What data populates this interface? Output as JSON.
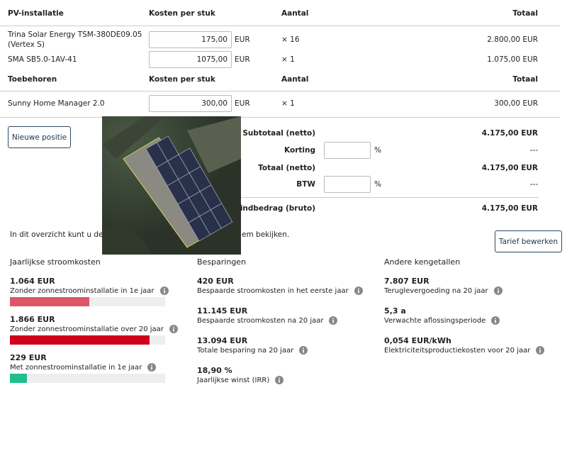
{
  "pv_table": {
    "headers": [
      "PV-installatie",
      "Kosten per stuk",
      "Aantal",
      "Totaal"
    ],
    "rows": [
      {
        "name": "Trina Solar Energy TSM-380DE09.05 (Vertex S)",
        "price": "175,00",
        "unit": "EUR",
        "quantity": "× 16",
        "total": "2.800,00 EUR"
      },
      {
        "name": "SMA SB5.0-1AV-41",
        "price": "1075,00",
        "unit": "EUR",
        "quantity": "× 1",
        "total": "1.075,00 EUR"
      }
    ]
  },
  "accessories_table": {
    "headers": [
      "Toebehoren",
      "Kosten per stuk",
      "Aantal",
      "Totaal"
    ],
    "rows": [
      {
        "name": "Sunny Home Manager 2.0",
        "price": "300,00",
        "unit": "EUR",
        "quantity": "× 1",
        "total": "300,00 EUR"
      }
    ]
  },
  "new_position_button": "Nieuwe positie",
  "summary": [
    {
      "label": "Subtotaal (netto)",
      "value": "4.175,00 EUR"
    },
    {
      "label": "Korting",
      "unit": "%",
      "value": "---"
    },
    {
      "label": "Totaal (netto)",
      "value": "4.175,00 EUR"
    },
    {
      "label": "BTW",
      "unit": "%",
      "value": "---"
    },
    {
      "label": "Eindbedrag (bruto)",
      "value": "4.175,00 EUR"
    }
  ],
  "note": {
    "part1": "In dit overzicht kunt u de res",
    "part2": "em bekijken."
  },
  "tariff_button": "Tarief bewerken",
  "costs": {
    "title": "Jaarlijkse stroomkosten",
    "items": [
      {
        "amount": {
          "value": 1064,
          "label": "1.064 EUR"
        },
        "text": "Zonder zonnestroominstallatie in 1e jaar",
        "color": "#dc5666"
      },
      {
        "amount": {
          "value": 1866,
          "label": "1.866 EUR"
        },
        "text": "Zonder zonnestroominstallatie over 20 jaar",
        "color": "#d0021b"
      },
      {
        "amount": {
          "value": 229,
          "label": "229 EUR"
        },
        "text": "Met zonnestroominstallatie in 1e jaar",
        "color": "#1fbf8f"
      }
    ]
  },
  "savings": {
    "title": "Besparingen",
    "items": [
      {
        "value": "420 EUR",
        "text": "Bespaarde stroomkosten in het eerste jaar"
      },
      {
        "value": "11.145 EUR",
        "text": "Bespaarde stroomkosten na 20 jaar"
      },
      {
        "value": "13.094 EUR",
        "text": "Totale besparing na 20 jaar"
      },
      {
        "value": "18,90 %",
        "text": "Jaarlijkse winst (IRR)"
      }
    ]
  },
  "other": {
    "title": "Andere kengetallen",
    "items": [
      {
        "value": "7.807 EUR",
        "text": "Teruglevergoeding na 20 jaar"
      },
      {
        "value": "5,3 a",
        "text": "Verwachte aflossingsperiode"
      },
      {
        "value": "0,054 EUR/kWh",
        "text": "Elektriciteitsproductiekosten voor 20 jaar"
      }
    ]
  }
}
